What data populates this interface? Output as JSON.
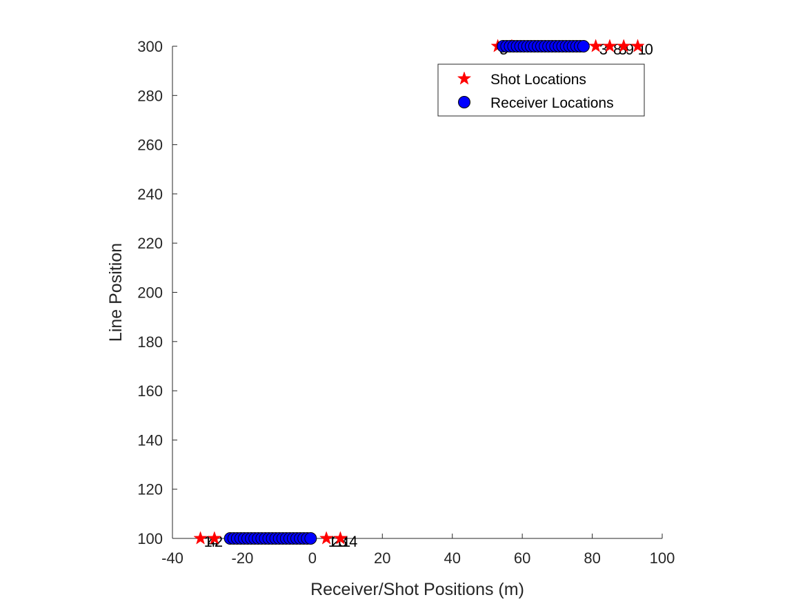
{
  "chart_data": {
    "type": "scatter",
    "title": "",
    "xlabel": "Receiver/Shot Positions (m)",
    "ylabel": "Line Position",
    "xlim": [
      -40,
      100
    ],
    "ylim": [
      100,
      300
    ],
    "x_ticks": [
      -40,
      -20,
      0,
      20,
      40,
      60,
      80,
      100
    ],
    "y_ticks": [
      100,
      120,
      140,
      160,
      180,
      200,
      220,
      240,
      260,
      280,
      300
    ],
    "x_tick_labels": [
      "-40",
      "-20",
      "0",
      "20",
      "40",
      "60",
      "80",
      "100"
    ],
    "y_tick_labels": [
      "100",
      "120",
      "140",
      "160",
      "180",
      "200",
      "220",
      "240",
      "260",
      "280",
      "300"
    ],
    "grid": false,
    "legend_position": "top-right",
    "series": [
      {
        "name": "Shot Locations",
        "marker": "star",
        "color": "#ff0000",
        "points": [
          {
            "x": -32,
            "y": 100
          },
          {
            "x": -28,
            "y": 100
          },
          {
            "x": 4,
            "y": 100
          },
          {
            "x": 8,
            "y": 100
          },
          {
            "x": 53,
            "y": 300
          },
          {
            "x": 57,
            "y": 300
          },
          {
            "x": 81,
            "y": 300
          },
          {
            "x": 85,
            "y": 300
          },
          {
            "x": 89,
            "y": 300
          },
          {
            "x": 93,
            "y": 300
          }
        ]
      },
      {
        "name": "Receiver Locations",
        "marker": "circle",
        "color": "#0000ff",
        "points": [
          {
            "x": -23.5,
            "y": 100
          },
          {
            "x": -22.5,
            "y": 100
          },
          {
            "x": -21.5,
            "y": 100
          },
          {
            "x": -20.5,
            "y": 100
          },
          {
            "x": -19.5,
            "y": 100
          },
          {
            "x": -18.5,
            "y": 100
          },
          {
            "x": -17.5,
            "y": 100
          },
          {
            "x": -16.5,
            "y": 100
          },
          {
            "x": -15.5,
            "y": 100
          },
          {
            "x": -14.5,
            "y": 100
          },
          {
            "x": -13.5,
            "y": 100
          },
          {
            "x": -12.5,
            "y": 100
          },
          {
            "x": -11.5,
            "y": 100
          },
          {
            "x": -10.5,
            "y": 100
          },
          {
            "x": -9.5,
            "y": 100
          },
          {
            "x": -8.5,
            "y": 100
          },
          {
            "x": -7.5,
            "y": 100
          },
          {
            "x": -6.5,
            "y": 100
          },
          {
            "x": -5.5,
            "y": 100
          },
          {
            "x": -4.5,
            "y": 100
          },
          {
            "x": -3.5,
            "y": 100
          },
          {
            "x": -2.5,
            "y": 100
          },
          {
            "x": -1.5,
            "y": 100
          },
          {
            "x": -0.5,
            "y": 100
          },
          {
            "x": 54.5,
            "y": 300
          },
          {
            "x": 55.5,
            "y": 300
          },
          {
            "x": 56.5,
            "y": 300
          },
          {
            "x": 57.5,
            "y": 300
          },
          {
            "x": 58.5,
            "y": 300
          },
          {
            "x": 59.5,
            "y": 300
          },
          {
            "x": 60.5,
            "y": 300
          },
          {
            "x": 61.5,
            "y": 300
          },
          {
            "x": 62.5,
            "y": 300
          },
          {
            "x": 63.5,
            "y": 300
          },
          {
            "x": 64.5,
            "y": 300
          },
          {
            "x": 65.5,
            "y": 300
          },
          {
            "x": 66.5,
            "y": 300
          },
          {
            "x": 67.5,
            "y": 300
          },
          {
            "x": 68.5,
            "y": 300
          },
          {
            "x": 69.5,
            "y": 300
          },
          {
            "x": 70.5,
            "y": 300
          },
          {
            "x": 71.5,
            "y": 300
          },
          {
            "x": 72.5,
            "y": 300
          },
          {
            "x": 73.5,
            "y": 300
          },
          {
            "x": 74.5,
            "y": 300
          },
          {
            "x": 75.5,
            "y": 300
          },
          {
            "x": 76.5,
            "y": 300
          },
          {
            "x": 77.5,
            "y": 300
          }
        ]
      }
    ],
    "annotations": [
      {
        "text": "1",
        "x": -31,
        "y": 100
      },
      {
        "text": "4",
        "x": -30,
        "y": 100
      },
      {
        "text": "4",
        "x": -29,
        "y": 100
      },
      {
        "text": "2",
        "x": -28,
        "y": 100
      },
      {
        "text": "1",
        "x": 4.5,
        "y": 100
      },
      {
        "text": "2",
        "x": 5.5,
        "y": 100
      },
      {
        "text": "1",
        "x": 6.5,
        "y": 100
      },
      {
        "text": "3",
        "x": 7.5,
        "y": 100
      },
      {
        "text": "1",
        "x": 8.5,
        "y": 100
      },
      {
        "text": "4",
        "x": 10.5,
        "y": 100
      },
      {
        "text": "5",
        "x": 53.5,
        "y": 300
      },
      {
        "text": "3",
        "x": 82,
        "y": 300
      },
      {
        "text": "8",
        "x": 86,
        "y": 300
      },
      {
        "text": "3",
        "x": 87.5,
        "y": 300
      },
      {
        "text": "9",
        "x": 89.5,
        "y": 300
      },
      {
        "text": "1",
        "x": 93,
        "y": 300
      },
      {
        "text": "0",
        "x": 95,
        "y": 300
      }
    ]
  }
}
